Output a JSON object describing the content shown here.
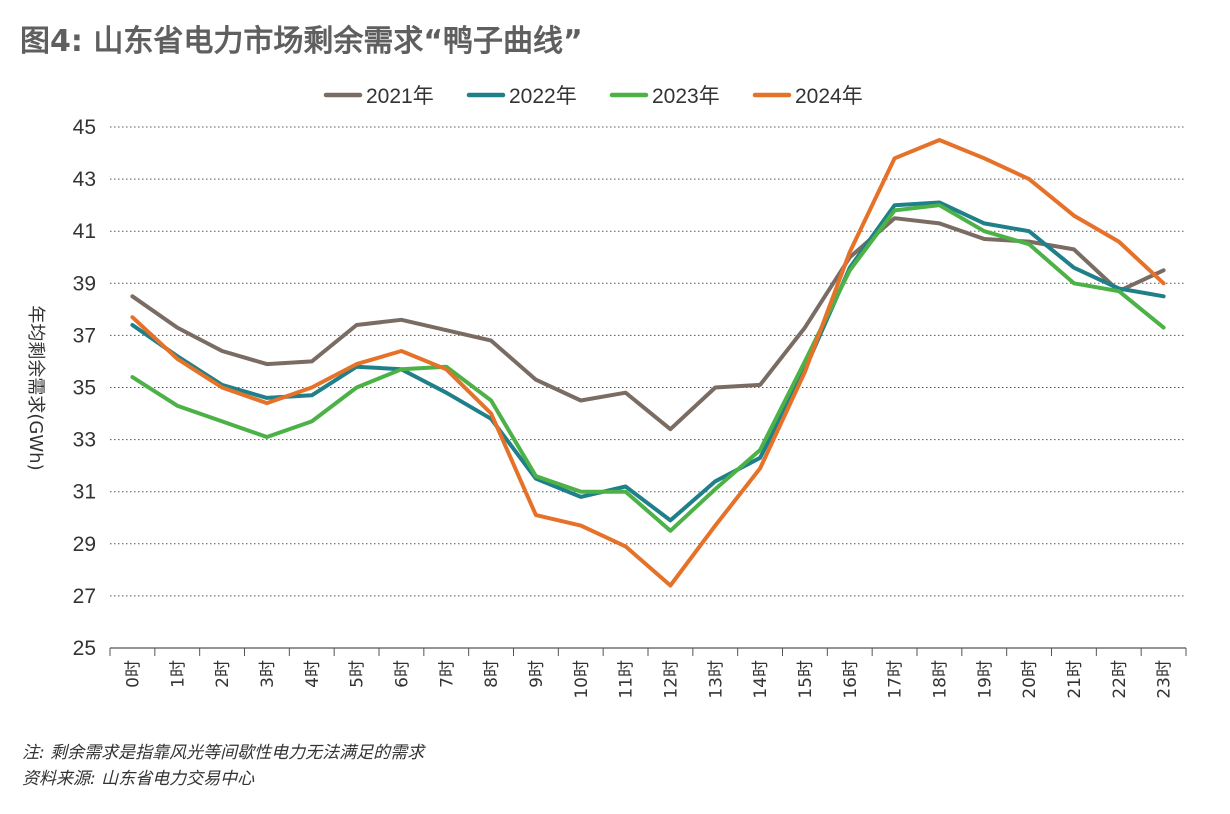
{
  "title": "图4: 山东省电力市场剩余需求“鸭子曲线”",
  "notes": {
    "note": "注: 剩余需求是指靠风光等间歇性电力无法满足的需求",
    "source": "资料来源: 山东省电力交易中心"
  },
  "chart_data": {
    "type": "line",
    "ylabel": "年均剩余需求(GWh)",
    "ylim": [
      25,
      45
    ],
    "yticks": [
      25,
      27,
      29,
      31,
      33,
      35,
      37,
      39,
      41,
      43,
      45
    ],
    "grid": "horizontal dotted",
    "legend_position": "top",
    "categories": [
      "0时",
      "1时",
      "2时",
      "3时",
      "4时",
      "5时",
      "6时",
      "7时",
      "8时",
      "9时",
      "10时",
      "11时",
      "12时",
      "13时",
      "14时",
      "15时",
      "16时",
      "17时",
      "18时",
      "19时",
      "20时",
      "21时",
      "22时",
      "23时"
    ],
    "series": [
      {
        "name": "2021年",
        "color": "#7b6c63",
        "values": [
          38.5,
          37.3,
          36.4,
          35.9,
          36.0,
          37.4,
          37.6,
          37.2,
          36.8,
          35.3,
          34.5,
          34.8,
          33.4,
          35.0,
          35.1,
          37.3,
          40.0,
          41.5,
          41.3,
          40.7,
          40.6,
          40.3,
          38.7,
          39.5
        ]
      },
      {
        "name": "2022年",
        "color": "#1f8089",
        "values": [
          37.4,
          36.2,
          35.1,
          34.6,
          34.7,
          35.8,
          35.7,
          34.8,
          33.8,
          31.5,
          30.8,
          31.2,
          29.9,
          31.4,
          32.3,
          35.7,
          39.6,
          42.0,
          42.1,
          41.3,
          41.0,
          39.6,
          38.8,
          38.5
        ]
      },
      {
        "name": "2023年",
        "color": "#4cb247",
        "values": [
          35.4,
          34.3,
          33.7,
          33.1,
          33.7,
          35.0,
          35.7,
          35.8,
          34.5,
          31.6,
          31.0,
          31.0,
          29.5,
          31.1,
          32.6,
          36.0,
          39.5,
          41.8,
          42.0,
          41.0,
          40.5,
          39.0,
          38.7,
          37.3
        ]
      },
      {
        "name": "2024年",
        "color": "#e57228",
        "values": [
          37.7,
          36.1,
          35.0,
          34.4,
          35.0,
          35.9,
          36.4,
          35.7,
          34.0,
          30.1,
          29.7,
          28.9,
          27.4,
          29.7,
          31.9,
          35.6,
          40.2,
          43.8,
          44.5,
          43.8,
          43.0,
          41.6,
          40.6,
          39.0
        ]
      }
    ]
  }
}
